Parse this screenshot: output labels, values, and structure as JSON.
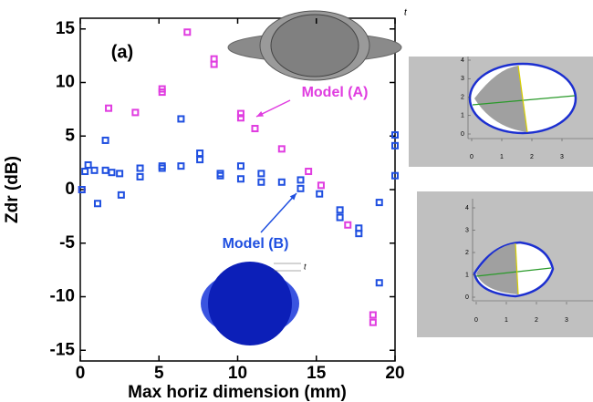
{
  "chart_data": [
    {
      "type": "scatter",
      "x_label": "Max horiz dimension (mm)",
      "y_label": "Zdr (dB)",
      "panel_label": "(a)",
      "shape_labels": [
        "t",
        "t"
      ],
      "xlim": [
        0,
        20
      ],
      "ylim": [
        -16,
        16
      ],
      "xticks": [
        0,
        5,
        10,
        15,
        20
      ],
      "yticks": [
        15,
        10,
        5,
        0,
        -5,
        -10,
        -15
      ],
      "series": [
        {
          "name": "Model (A)",
          "color": "#e03de0",
          "x": [
            0.1,
            1.8,
            3.5,
            5.2,
            5.2,
            6.8,
            8.5,
            8.5,
            10.2,
            10.2,
            11.1,
            12.8,
            14.5,
            15.3,
            17.0,
            18.6,
            18.6
          ],
          "values": [
            0,
            7.6,
            7.2,
            9.4,
            9.1,
            14.7,
            12.2,
            11.7,
            7.1,
            6.7,
            5.7,
            3.8,
            1.7,
            0.4,
            -3.3,
            -11.7,
            -12.4
          ]
        },
        {
          "name": "Model (B)",
          "color": "#1f4fe0",
          "x": [
            0.1,
            0.3,
            0.5,
            0.9,
            1.1,
            1.6,
            1.6,
            2.0,
            2.5,
            2.6,
            3.8,
            3.8,
            5.2,
            5.2,
            6.4,
            6.4,
            7.6,
            7.6,
            8.9,
            8.9,
            10.2,
            10.2,
            11.5,
            11.5,
            12.8,
            14.0,
            14.0,
            15.2,
            16.5,
            16.5,
            17.7,
            17.7,
            19.0,
            19.0,
            20,
            20,
            20
          ],
          "values": [
            0,
            1.7,
            2.3,
            1.8,
            -1.3,
            1.8,
            4.6,
            1.6,
            1.5,
            -0.5,
            2.0,
            1.2,
            2.2,
            2.0,
            2.2,
            6.6,
            3.4,
            2.8,
            1.5,
            1.3,
            2.2,
            1.0,
            1.5,
            0.7,
            0.7,
            0.9,
            0.1,
            -0.4,
            -1.9,
            -2.6,
            -3.6,
            -4.1,
            -1.2,
            -8.7,
            5.1,
            4.1,
            1.3
          ]
        }
      ]
    },
    {
      "type": "image",
      "xlim": [
        0,
        4
      ],
      "ylim": [
        0,
        4
      ],
      "xticks": [
        0,
        1,
        2,
        3
      ],
      "yticks": [
        4,
        3,
        2,
        1,
        0
      ]
    },
    {
      "type": "image",
      "xlim": [
        0,
        4
      ],
      "ylim": [
        0,
        4
      ],
      "xticks": [
        0,
        1,
        2,
        3
      ],
      "yticks": [
        4,
        3,
        2,
        1,
        0
      ]
    }
  ]
}
